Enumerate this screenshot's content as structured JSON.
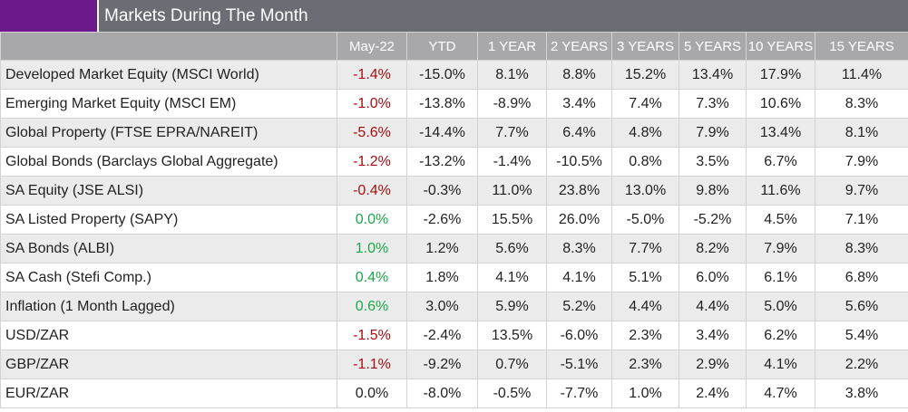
{
  "title": "Markets During The Month",
  "colors": {
    "accent": "#6a1a8a",
    "title_bg": "#6b6d74",
    "header_bg": "#a8a8ab",
    "negative": "#a80f0f",
    "positive": "#1aa84a"
  },
  "columns": [
    "May-22",
    "YTD",
    "1 YEAR",
    "2 YEARS",
    "3 YEARS",
    "5 YEARS",
    "10 YEARS",
    "15 YEARS"
  ],
  "rows": [
    {
      "label": "Developed Market Equity (MSCI World)",
      "month_trend": "negative",
      "values": [
        "-1.4%",
        "-15.0%",
        "8.1%",
        "8.8%",
        "15.2%",
        "13.4%",
        "17.9%",
        "11.4%"
      ]
    },
    {
      "label": "Emerging Market Equity (MSCI EM)",
      "month_trend": "negative",
      "values": [
        "-1.0%",
        "-13.8%",
        "-8.9%",
        "3.4%",
        "7.4%",
        "7.3%",
        "10.6%",
        "8.3%"
      ]
    },
    {
      "label": "Global Property (FTSE EPRA/NAREIT)",
      "month_trend": "negative",
      "values": [
        "-5.6%",
        "-14.4%",
        "7.7%",
        "6.4%",
        "4.8%",
        "7.9%",
        "13.4%",
        "8.1%"
      ]
    },
    {
      "label": "Global Bonds (Barclays Global Aggregate)",
      "month_trend": "negative",
      "values": [
        "-1.2%",
        "-13.2%",
        "-1.4%",
        "-10.5%",
        "0.8%",
        "3.5%",
        "6.7%",
        "7.9%"
      ]
    },
    {
      "label": "SA Equity (JSE ALSI)",
      "month_trend": "negative",
      "values": [
        "-0.4%",
        "-0.3%",
        "11.0%",
        "23.8%",
        "13.0%",
        "9.8%",
        "11.6%",
        "9.7%"
      ]
    },
    {
      "label": "SA Listed Property (SAPY)",
      "month_trend": "positive",
      "values": [
        "0.0%",
        "-2.6%",
        "15.5%",
        "26.0%",
        "-5.0%",
        "-5.2%",
        "4.5%",
        "7.1%"
      ]
    },
    {
      "label": "SA Bonds (ALBI)",
      "month_trend": "positive",
      "values": [
        "1.0%",
        "1.2%",
        "5.6%",
        "8.3%",
        "7.7%",
        "8.2%",
        "7.9%",
        "8.3%"
      ]
    },
    {
      "label": "SA Cash (Stefi Comp.)",
      "month_trend": "positive",
      "values": [
        "0.4%",
        "1.8%",
        "4.1%",
        "4.1%",
        "5.1%",
        "6.0%",
        "6.1%",
        "6.8%"
      ]
    },
    {
      "label": "Inflation (1 Month Lagged)",
      "month_trend": "positive",
      "values": [
        "0.6%",
        "3.0%",
        "5.9%",
        "5.2%",
        "4.4%",
        "4.4%",
        "5.0%",
        "5.6%"
      ]
    },
    {
      "label": "USD/ZAR",
      "month_trend": "negative",
      "values": [
        "-1.5%",
        "-2.4%",
        "13.5%",
        "-6.0%",
        "2.3%",
        "3.4%",
        "6.2%",
        "5.4%"
      ]
    },
    {
      "label": "GBP/ZAR",
      "month_trend": "negative",
      "values": [
        "-1.1%",
        "-9.2%",
        "0.7%",
        "-5.1%",
        "2.3%",
        "2.9%",
        "4.1%",
        "2.2%"
      ]
    },
    {
      "label": "EUR/ZAR",
      "month_trend": "neutral",
      "values": [
        "0.0%",
        "-8.0%",
        "-0.5%",
        "-7.7%",
        "1.0%",
        "2.4%",
        "4.7%",
        "3.8%"
      ]
    }
  ]
}
